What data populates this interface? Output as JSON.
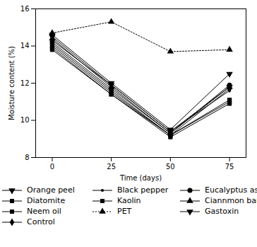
{
  "chart_data": {
    "type": "line",
    "xlabel": "Time (days)",
    "ylabel": "Moisture content (%)",
    "x": [
      0,
      25,
      50,
      75
    ],
    "xlim": [
      -7,
      82
    ],
    "xticks": [
      0,
      25,
      50,
      75
    ],
    "ylim": [
      8,
      16
    ],
    "yticks": [
      8,
      10,
      12,
      14,
      16
    ],
    "grid": false,
    "legend": "bottom",
    "color": "#000000",
    "series": [
      {
        "name": "Orange peel",
        "marker": "triangle-down",
        "line_style": "solid",
        "values": [
          14.6,
          12.0,
          9.5,
          12.5
        ]
      },
      {
        "name": "Black pepper",
        "marker": "dot",
        "line_style": "solid",
        "values": [
          14.3,
          11.9,
          9.4,
          11.6
        ]
      },
      {
        "name": "Eucalyptus ashes",
        "marker": "circle",
        "line_style": "solid",
        "values": [
          14.2,
          11.7,
          9.3,
          11.9
        ]
      },
      {
        "name": "Diatomite",
        "marker": "square",
        "line_style": "solid",
        "values": [
          13.9,
          11.4,
          9.1,
          10.9
        ]
      },
      {
        "name": "Kaolin",
        "marker": "square",
        "line_style": "solid",
        "values": [
          14.0,
          11.5,
          9.2,
          11.0
        ]
      },
      {
        "name": "Ciannmon bark",
        "marker": "triangle",
        "line_style": "solid",
        "values": [
          14.4,
          11.8,
          9.3,
          11.8
        ]
      },
      {
        "name": "Neem oil",
        "marker": "square",
        "line_style": "solid",
        "values": [
          13.8,
          11.4,
          9.2,
          11.1
        ]
      },
      {
        "name": "PET",
        "marker": "triangle",
        "line_style": "dotted",
        "values": [
          14.7,
          15.3,
          13.7,
          13.8
        ]
      },
      {
        "name": "Gastoxin",
        "marker": "triangle-down",
        "line_style": "solid",
        "values": [
          14.5,
          11.9,
          9.4,
          11.8
        ]
      },
      {
        "name": "Control",
        "marker": "diamond",
        "line_style": "solid",
        "values": [
          14.1,
          11.6,
          9.2,
          11.7
        ]
      }
    ]
  }
}
